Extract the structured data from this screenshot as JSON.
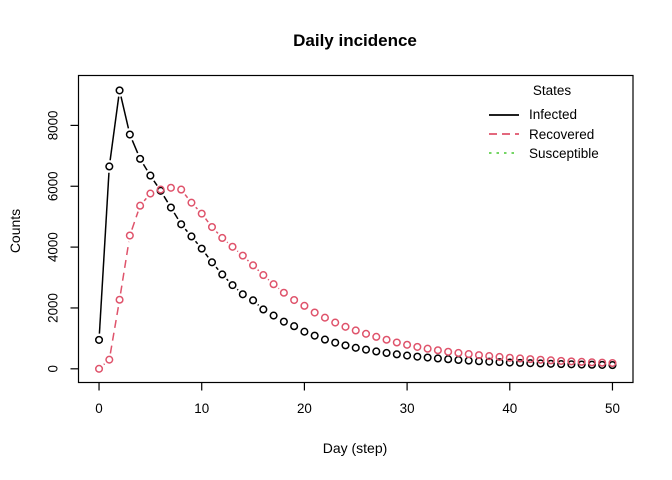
{
  "chart_data": {
    "type": "line",
    "title": "Daily incidence",
    "xlabel": "Day (step)",
    "ylabel": "Counts",
    "marker": "open-circle",
    "grid": false,
    "xticks": [
      0,
      10,
      20,
      30,
      40,
      50
    ],
    "yticks": [
      0,
      2000,
      4000,
      6000,
      8000
    ],
    "xlim": [
      -2,
      52
    ],
    "ylim": [
      -450,
      9640
    ],
    "x": [
      0,
      1,
      2,
      3,
      4,
      5,
      6,
      7,
      8,
      9,
      10,
      11,
      12,
      13,
      14,
      15,
      16,
      17,
      18,
      19,
      20,
      21,
      22,
      23,
      24,
      25,
      26,
      27,
      28,
      29,
      30,
      31,
      32,
      33,
      34,
      35,
      36,
      37,
      38,
      39,
      40,
      41,
      42,
      43,
      44,
      45,
      46,
      47,
      48,
      49,
      50
    ],
    "legend": {
      "title": "States",
      "position": "top-right",
      "frame": false,
      "entries": [
        {
          "label": "Infected",
          "color": "#000000",
          "linestyle": "solid"
        },
        {
          "label": "Recovered",
          "color": "#DF536B",
          "linestyle": "dashed"
        },
        {
          "label": "Susceptible",
          "color": "#61D04F",
          "linestyle": "dotted"
        }
      ]
    },
    "series": [
      {
        "name": "Infected",
        "color": "#000000",
        "linestyle": "solid",
        "values": [
          950,
          6650,
          9150,
          7700,
          6900,
          6350,
          5850,
          5300,
          4750,
          4350,
          3950,
          3500,
          3100,
          2750,
          2450,
          2250,
          1950,
          1750,
          1550,
          1400,
          1220,
          1090,
          960,
          860,
          770,
          690,
          630,
          570,
          520,
          475,
          435,
          400,
          370,
          340,
          315,
          290,
          270,
          250,
          235,
          220,
          205,
          195,
          185,
          175,
          165,
          155,
          148,
          140,
          134,
          128,
          122
        ]
      },
      {
        "name": "Recovered",
        "color": "#DF536B",
        "linestyle": "dashed",
        "values": [
          0,
          300,
          2270,
          4380,
          5360,
          5760,
          5890,
          5950,
          5890,
          5460,
          5100,
          4660,
          4300,
          4010,
          3720,
          3400,
          3080,
          2780,
          2500,
          2260,
          2070,
          1850,
          1680,
          1520,
          1380,
          1260,
          1150,
          1050,
          955,
          865,
          790,
          720,
          660,
          610,
          560,
          520,
          483,
          450,
          418,
          390,
          363,
          340,
          318,
          297,
          278,
          260,
          244,
          229,
          215,
          202,
          190
        ]
      },
      {
        "name": "Susceptible",
        "color": "#61D04F",
        "linestyle": "dotted",
        "values": []
      }
    ]
  }
}
